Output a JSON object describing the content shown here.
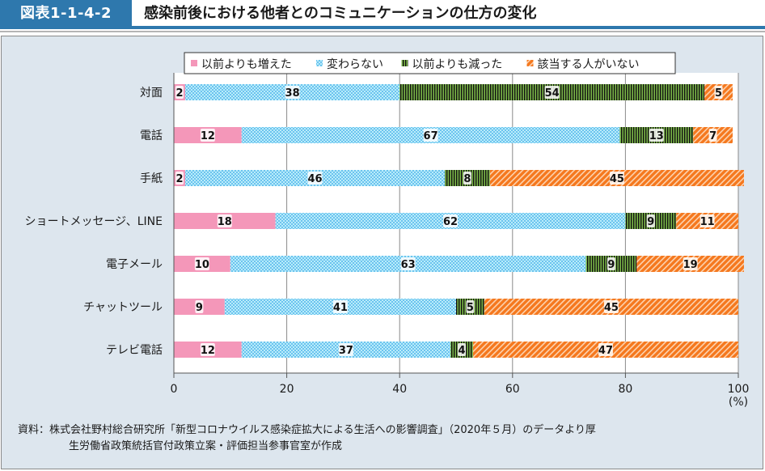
{
  "header": {
    "figure_number": "図表1-1-4-2",
    "title": "感染前後における他者とのコミュニケーションの仕方の変化"
  },
  "chart_data": {
    "type": "bar",
    "orientation": "horizontal",
    "stacked": true,
    "title": "感染前後における他者とのコミュニケーションの仕方の変化",
    "categories": [
      "対面",
      "電話",
      "手紙",
      "ショートメッセージ、LINE",
      "電子メール",
      "チャットツール",
      "テレビ電話"
    ],
    "series": [
      {
        "name": "以前よりも増えた",
        "color": "#f497b9",
        "pattern": "solid",
        "values": [
          2,
          12,
          2,
          18,
          10,
          9,
          12
        ]
      },
      {
        "name": "変わらない",
        "color": "#8fd6f5",
        "pattern": "checker",
        "values": [
          38,
          67,
          46,
          62,
          63,
          41,
          37
        ]
      },
      {
        "name": "以前よりも減った",
        "color": "#7ab648",
        "pattern": "vertical-stripes",
        "values": [
          54,
          13,
          8,
          9,
          9,
          5,
          4
        ]
      },
      {
        "name": "該当する人がいない",
        "color": "#f5781e",
        "pattern": "diagonal-stripes",
        "values": [
          5,
          7,
          45,
          11,
          19,
          45,
          47
        ]
      }
    ],
    "xlabel": "",
    "xunit": "(%)",
    "ylabel": "",
    "xlim": [
      0,
      100
    ],
    "xticks": [
      0,
      20,
      40,
      60,
      80,
      100
    ],
    "grid": "vertical",
    "legend_position": "top"
  },
  "footer": {
    "source_line1": "資料：株式会社野村総合研究所「新型コロナウイルス感染症拡大による生活への影響調査」（2020年５月）のデータより厚",
    "source_line2": "生労働省政策統括官付政策立案・評価担当参事官室が作成"
  }
}
